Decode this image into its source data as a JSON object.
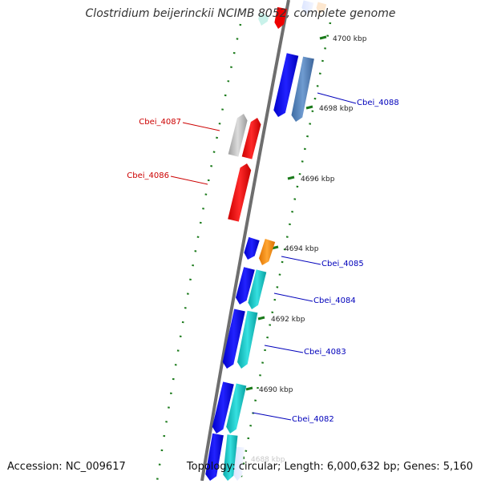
{
  "map": {
    "title": "Clostridium beijerinckii NCIMB 8052, complete genome",
    "accession": "Accession: NC_009617",
    "summary": "Topology: circular; Length: 6,000,632 bp; Genes: 5,160"
  },
  "colors": {
    "strand": "#6e6e6e",
    "tick": "#1a7a1a",
    "red_label": "#cc0000",
    "blue_label": "#0000bb",
    "blue": "#0000ee",
    "steelblue": "#4a7db8",
    "cyan": "#10c8c8",
    "red": "#ee0000",
    "gray": "#b8b8b8",
    "orange": "#ff8c00"
  },
  "ticks": [
    {
      "label": "4700 kbp"
    },
    {
      "label": "4698 kbp"
    },
    {
      "label": "4696 kbp"
    },
    {
      "label": "4694 kbp"
    },
    {
      "label": "4692 kbp"
    },
    {
      "label": "4690 kbp"
    },
    {
      "label": "4688 kbp"
    }
  ],
  "genes": [
    {
      "label": "Cbei_4088",
      "strand": "forward",
      "color": "steelblue"
    },
    {
      "label": "Cbei_4087",
      "strand": "reverse",
      "color": "red"
    },
    {
      "label": "Cbei_4086",
      "strand": "reverse",
      "color": "red"
    },
    {
      "label": "Cbei_4085",
      "strand": "forward",
      "color": "orange"
    },
    {
      "label": "Cbei_4084",
      "strand": "forward",
      "color": "cyan"
    },
    {
      "label": "Cbei_4083",
      "strand": "forward",
      "color": "cyan"
    },
    {
      "label": "Cbei_4082",
      "strand": "forward",
      "color": "cyan"
    }
  ]
}
